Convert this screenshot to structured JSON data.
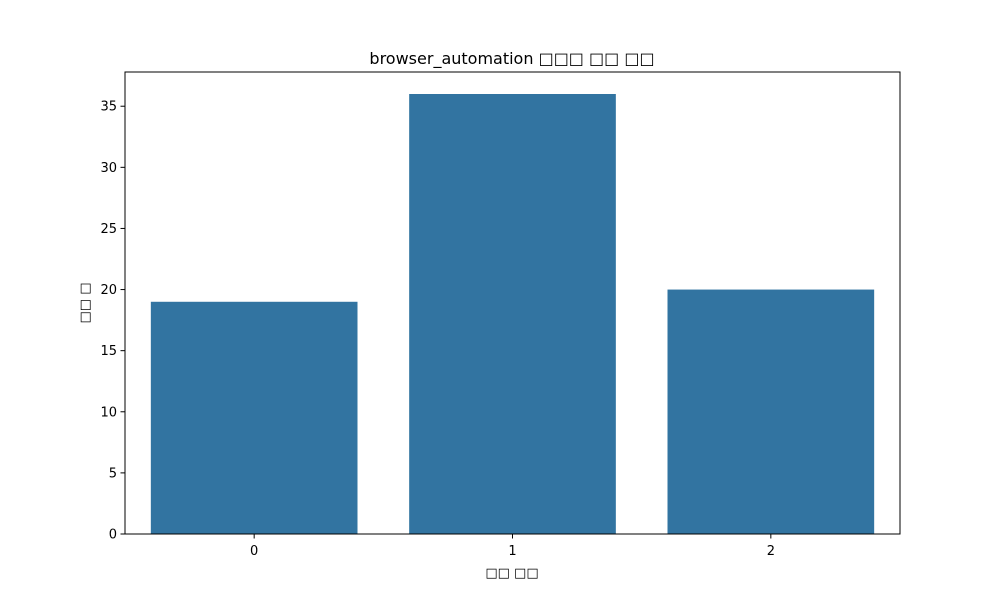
{
  "chart_data": {
    "type": "bar",
    "title": "browser_automation □□□ □□ □□",
    "xlabel": "□□ □□",
    "ylabel": "□□ □",
    "categories": [
      "0",
      "1",
      "2"
    ],
    "values": [
      19,
      36,
      20
    ],
    "ylim": [
      0,
      37.8
    ],
    "yticks": [
      0,
      5,
      10,
      15,
      20,
      25,
      30,
      35
    ],
    "grid": false,
    "legend": "none",
    "bar_color": "#3274a1"
  }
}
